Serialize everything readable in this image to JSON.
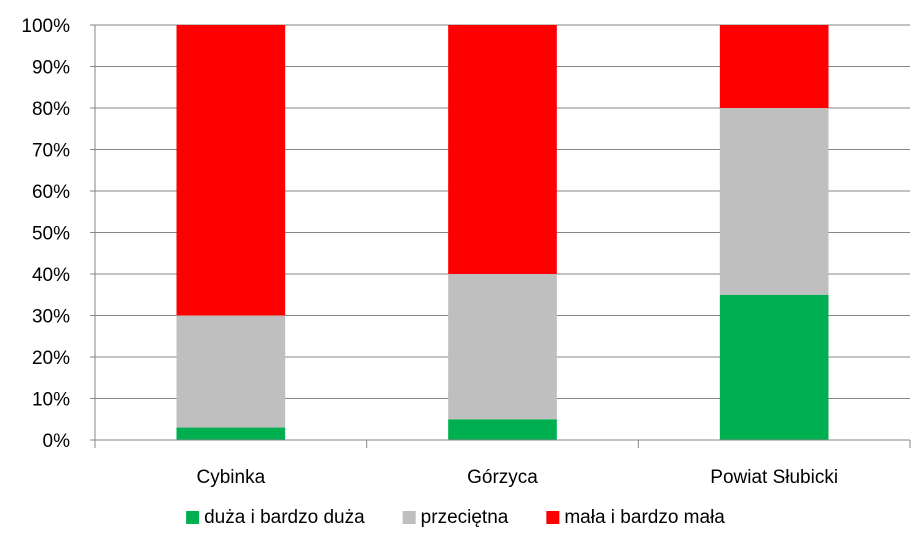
{
  "chart_data": {
    "type": "bar",
    "stacked": true,
    "percent": true,
    "title": "",
    "xlabel": "",
    "ylabel": "",
    "categories": [
      "Cybinka",
      "Górzyca",
      "Powiat Słubicki"
    ],
    "series": [
      {
        "name": "duża i bardzo duża",
        "color": "#00b050",
        "values": [
          3,
          5,
          35
        ]
      },
      {
        "name": "przeciętna",
        "color": "#bfbfbf",
        "values": [
          27,
          35,
          45
        ]
      },
      {
        "name": "mała i bardzo mała",
        "color": "#ff0000",
        "values": [
          70,
          60,
          20
        ]
      }
    ],
    "ylim": [
      0,
      100
    ],
    "yticks": [
      "0%",
      "10%",
      "20%",
      "30%",
      "40%",
      "50%",
      "60%",
      "70%",
      "80%",
      "90%",
      "100%"
    ],
    "grid": true,
    "legend": "bottom"
  }
}
